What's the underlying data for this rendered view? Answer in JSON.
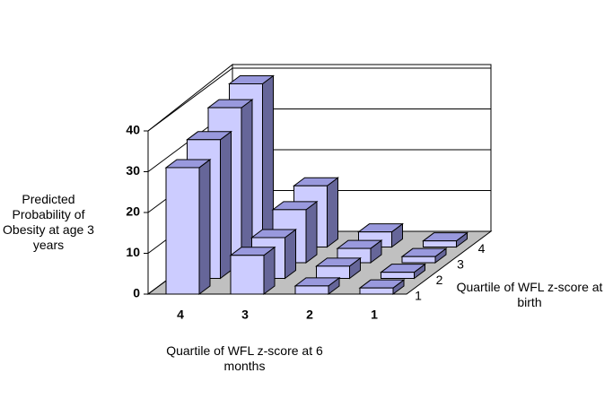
{
  "chart_data": {
    "type": "bar3d",
    "x_label": "Quartile of WFL z-score at 6 months",
    "y_label": "Predicted Probability of Obesity at age 3 years",
    "z_label": "Quartile of WFL z-score at birth",
    "categories": [
      "4",
      "3",
      "2",
      "1"
    ],
    "series": [
      {
        "name": "1",
        "color": "#ccccff",
        "values": [
          31,
          9.5,
          2,
          1.5
        ]
      },
      {
        "name": "2",
        "color": "#ccccff",
        "values": [
          34,
          10,
          3,
          1.5
        ]
      },
      {
        "name": "3",
        "color": "#ccccff",
        "values": [
          38,
          13,
          3.5,
          1.5
        ]
      },
      {
        "name": "4",
        "color": "#ccccff",
        "values": [
          40,
          15,
          3.7,
          1.5
        ]
      }
    ],
    "ylim": [
      0,
      40
    ],
    "yticks": [
      0,
      10,
      20,
      30,
      40
    ],
    "grid": true
  }
}
